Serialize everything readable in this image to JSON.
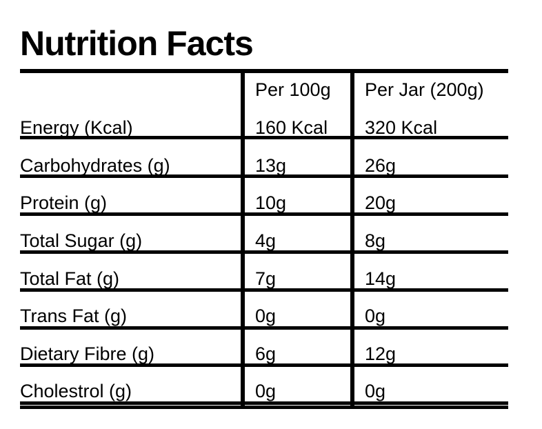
{
  "title": "Nutrition Facts",
  "table": {
    "headers": [
      "",
      "Per 100g",
      "Per Jar (200g)"
    ],
    "rows": [
      [
        "Energy (Kcal)",
        "160 Kcal",
        "320 Kcal"
      ],
      [
        "Carbohydrates (g)",
        "13g",
        "26g"
      ],
      [
        "Protein (g)",
        "10g",
        "20g"
      ],
      [
        "Total Sugar (g)",
        "4g",
        "8g"
      ],
      [
        "Total Fat (g)",
        "7g",
        "14g"
      ],
      [
        "Trans Fat (g)",
        "0g",
        "0g"
      ],
      [
        "Dietary Fibre (g)",
        "6g",
        "12g"
      ],
      [
        "Cholestrol (g)",
        "0g",
        "0g"
      ]
    ]
  }
}
